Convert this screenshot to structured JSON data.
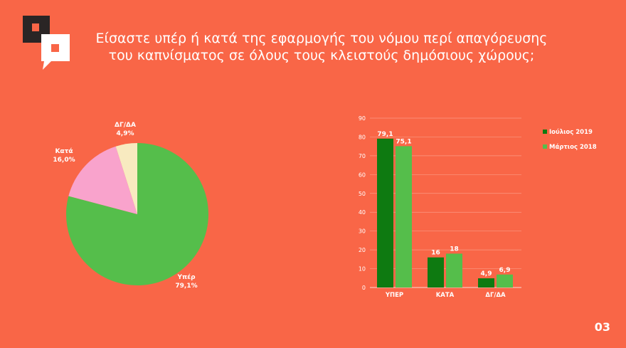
{
  "title_lines": [
    "Είσαστε υπέρ ή κατά της  εφαρμογής του νόμου περί απαγόρευσης",
    "του καπνίσματος σε όλους τους κλειστούς δημόσιους χώρους;"
  ],
  "page_number": "03",
  "colors": {
    "background": "#F96647",
    "dark_green": "#0E7A11",
    "light_green": "#55BE4B",
    "pink": "#F9A3CC",
    "cream": "#F8EAC0"
  },
  "chart_data": [
    {
      "type": "pie",
      "slices": [
        {
          "label": "Υπέρ",
          "value": 79.1,
          "display": "79,1%",
          "color": "#55BE4B"
        },
        {
          "label": "Κατά",
          "value": 16.0,
          "display": "16,0%",
          "color": "#F9A3CC"
        },
        {
          "label": "ΔΓ/ΔΑ",
          "value": 4.9,
          "display": "4,9%",
          "color": "#F8EAC0"
        }
      ]
    },
    {
      "type": "bar",
      "categories": [
        "ΥΠΕΡ",
        "ΚΑΤΑ",
        "ΔΓ/ΔΑ"
      ],
      "series": [
        {
          "name": "Ιούλιος 2019",
          "values": [
            79.1,
            16,
            4.9
          ],
          "labels": [
            "79,1",
            "16",
            "4,9"
          ],
          "color": "#0E7A11"
        },
        {
          "name": "Μάρτιος 2018",
          "values": [
            75.1,
            18,
            6.9
          ],
          "labels": [
            "75,1",
            "18",
            "6,9"
          ],
          "color": "#55BE4B"
        }
      ],
      "ylim": [
        0,
        90
      ],
      "yticks": [
        0,
        10,
        20,
        30,
        40,
        50,
        60,
        70,
        80,
        90
      ],
      "grid": true,
      "legend": "right"
    }
  ]
}
